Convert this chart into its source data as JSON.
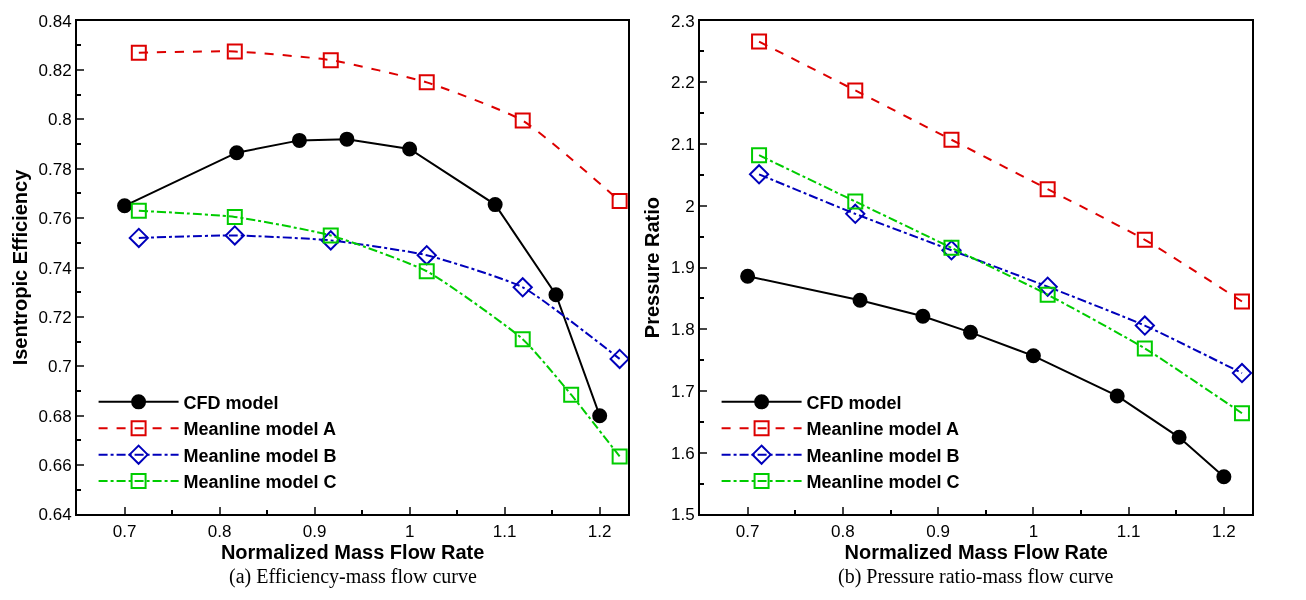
{
  "chart_data": [
    {
      "type": "line",
      "xlabel": "Normalized Mass Flow Rate",
      "ylabel": "Isentropic Efficiency",
      "xlim": [
        0.65,
        1.23
      ],
      "xticks": [
        0.7,
        0.8,
        0.9,
        1,
        1.1,
        1.2
      ],
      "ylim": [
        0.64,
        0.84
      ],
      "yticks": [
        0.64,
        0.66,
        0.68,
        0.7,
        0.72,
        0.74,
        0.76,
        0.78,
        0.8,
        0.82,
        0.84
      ],
      "legend": "bottom left",
      "annotations": [
        "(a) Efficiency-mass flow curve"
      ],
      "series": [
        {
          "name": "CFD model",
          "color": "#000000",
          "marker": "circle",
          "line_style": "solid",
          "x": [
            0.7,
            0.818,
            0.884,
            0.934,
            1.0,
            1.09,
            1.154,
            1.2
          ],
          "values": [
            0.765,
            0.7865,
            0.7915,
            0.792,
            0.788,
            0.7655,
            0.729,
            0.68
          ]
        },
        {
          "name": "Meanline model A",
          "color": "#dd0000",
          "marker": "square",
          "line_style": "dashed",
          "x": [
            0.715,
            0.816,
            0.917,
            1.018,
            1.119,
            1.221
          ],
          "values": [
            0.827,
            0.8275,
            0.824,
            0.815,
            0.7995,
            0.767
          ]
        },
        {
          "name": "Meanline model B",
          "color": "#0000bb",
          "marker": "diamond",
          "line_style": "dashdot",
          "x": [
            0.715,
            0.816,
            0.917,
            1.018,
            1.119,
            1.221
          ],
          "values": [
            0.752,
            0.753,
            0.751,
            0.745,
            0.732,
            0.703
          ]
        },
        {
          "name": "Meanline model C",
          "color": "#00cc00",
          "marker": "square",
          "line_style": "dashdot",
          "x": [
            0.715,
            0.816,
            0.917,
            1.018,
            1.119,
            1.17,
            1.221
          ],
          "values": [
            0.763,
            0.7605,
            0.753,
            0.7385,
            0.711,
            0.6885,
            0.6635
          ]
        }
      ]
    },
    {
      "type": "line",
      "xlabel": "Normalized Mass Flow Rate",
      "ylabel": "Pressure Ratio",
      "xlim": [
        0.65,
        1.23
      ],
      "xticks": [
        0.7,
        0.8,
        0.9,
        1,
        1.1,
        1.2
      ],
      "ylim": [
        1.5,
        2.3
      ],
      "yticks": [
        1.5,
        1.6,
        1.7,
        1.8,
        1.9,
        2,
        2.1,
        2.2,
        2.3
      ],
      "legend": "bottom left",
      "annotations": [
        "(b) Pressure ratio-mass flow curve"
      ],
      "series": [
        {
          "name": "CFD model",
          "color": "#000000",
          "marker": "circle",
          "line_style": "solid",
          "x": [
            0.7,
            0.818,
            0.884,
            0.934,
            1.0,
            1.088,
            1.153,
            1.2
          ],
          "values": [
            1.886,
            1.847,
            1.821,
            1.795,
            1.757,
            1.692,
            1.625,
            1.561
          ]
        },
        {
          "name": "Meanline model A",
          "color": "#dd0000",
          "marker": "square",
          "line_style": "dashed",
          "x": [
            0.712,
            0.813,
            0.914,
            1.015,
            1.117,
            1.219
          ],
          "values": [
            2.266,
            2.187,
            2.107,
            2.027,
            1.945,
            1.845
          ]
        },
        {
          "name": "Meanline model B",
          "color": "#0000bb",
          "marker": "diamond",
          "line_style": "dashdot",
          "x": [
            0.712,
            0.813,
            0.914,
            1.015,
            1.117,
            1.219
          ],
          "values": [
            2.051,
            1.987,
            1.928,
            1.869,
            1.806,
            1.729
          ]
        },
        {
          "name": "Meanline model C",
          "color": "#00cc00",
          "marker": "square",
          "line_style": "dashdot",
          "x": [
            0.712,
            0.813,
            0.914,
            1.015,
            1.117,
            1.219
          ],
          "values": [
            2.082,
            2.007,
            1.932,
            1.856,
            1.769,
            1.664
          ]
        }
      ]
    }
  ]
}
